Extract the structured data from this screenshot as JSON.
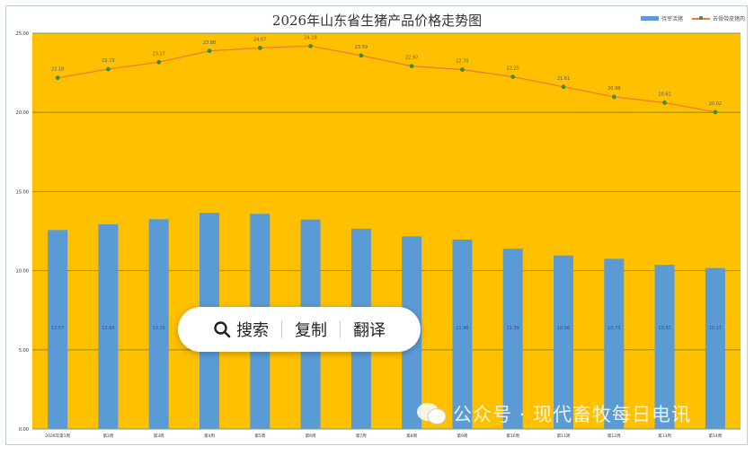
{
  "chart_data": {
    "type": "bar+line",
    "title": "2026年山东省生猪产品价格走势图",
    "categories": [
      "2026年第1周",
      "第2周",
      "第3周",
      "第4周",
      "第5周",
      "第6周",
      "第7周",
      "第8周",
      "第9周",
      "第10周",
      "第11周",
      "第12周",
      "第13周",
      "第14周"
    ],
    "series": [
      {
        "name": "待宰活猪",
        "kind": "bar",
        "color": "#5b9bd5",
        "values": [
          12.57,
          12.93,
          13.25,
          13.65,
          13.59,
          13.23,
          12.65,
          12.17,
          11.96,
          11.39,
          10.96,
          10.75,
          10.37,
          10.17
        ],
        "labels": [
          "12.57",
          "12.93",
          "13.25",
          "",
          "",
          "",
          "",
          "",
          "11.96",
          "11.39",
          "10.96",
          "10.75",
          "10.37",
          "10.17"
        ]
      },
      {
        "name": "去骨带皮猪肉",
        "kind": "line",
        "color": "#ed7d31",
        "marker_color": "#3c8c3c",
        "values": [
          22.18,
          22.73,
          23.17,
          23.88,
          24.07,
          24.19,
          23.59,
          22.92,
          22.7,
          22.25,
          21.61,
          20.98,
          20.61,
          20.02
        ],
        "labels": [
          "22.18",
          "22.73",
          "23.17",
          "23.88",
          "24.07",
          "24.19",
          "23.59",
          "22.92",
          "22.70",
          "22.25",
          "21.61",
          "20.98",
          "20.61",
          "20.02"
        ]
      }
    ],
    "ylim": [
      0,
      25
    ],
    "y_ticks": [
      "0.00",
      "5.00",
      "10.00",
      "15.00",
      "20.00",
      "25.00"
    ],
    "grid": true,
    "legend_position": "top-right",
    "colors": {
      "plot_bg": "#ffc000",
      "grid": "#4f8a5c"
    }
  },
  "overlay": {
    "search_label": "搜索",
    "copy_label": "复制",
    "translate_label": "翻译"
  },
  "watermark": {
    "text": "公众号 · 现代畜牧每日电讯"
  }
}
